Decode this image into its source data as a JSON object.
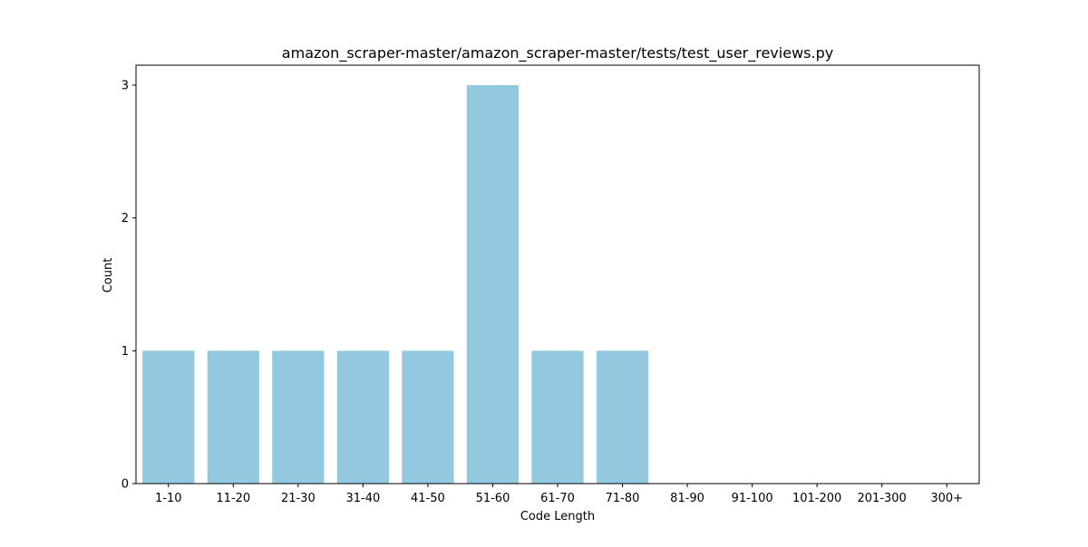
{
  "chart_data": {
    "type": "bar",
    "title": "amazon_scraper-master/amazon_scraper-master/tests/test_user_reviews.py",
    "xlabel": "Code Length",
    "ylabel": "Count",
    "categories": [
      "1-10",
      "11-20",
      "21-30",
      "31-40",
      "41-50",
      "51-60",
      "61-70",
      "71-80",
      "81-90",
      "91-100",
      "101-200",
      "201-300",
      "300+"
    ],
    "values": [
      1,
      1,
      1,
      1,
      1,
      3,
      1,
      1,
      0,
      0,
      0,
      0,
      0
    ],
    "ylim": [
      0,
      3.15
    ],
    "yticks": [
      0,
      1,
      2,
      3
    ],
    "bar_color": "#92c9e0",
    "grid": false,
    "legend": "none"
  }
}
